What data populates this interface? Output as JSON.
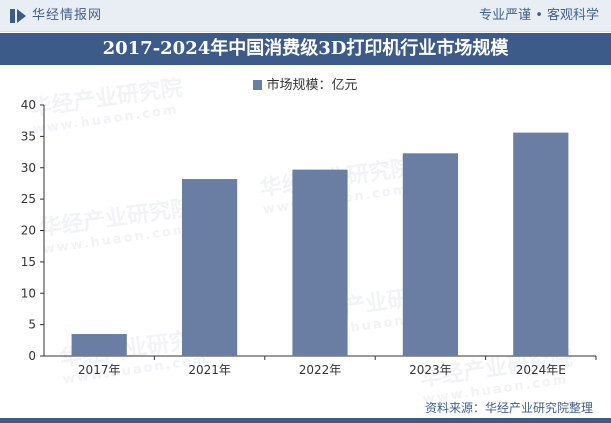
{
  "header": {
    "brand": "华经情报网",
    "slogan": "专业严谨 • 客观科学"
  },
  "watermark": {
    "text": "华经产业研究院",
    "url": "www.huaon.com"
  },
  "source": "资料来源：华经产业研究院整理",
  "colors": {
    "bar": "#6a7ea3",
    "title_bg": "#3d5b89",
    "header_text": "#3f5f8c"
  },
  "chart_data": {
    "type": "bar",
    "title": "2017-2024年中国消费级3D打印机行业市场规模",
    "categories": [
      "2017年",
      "2021年",
      "2022年",
      "2023年",
      "2024年E"
    ],
    "series": [
      {
        "name": "市场规模：亿元",
        "values": [
          3.5,
          28.2,
          29.7,
          32.3,
          35.6
        ]
      }
    ],
    "ylim": [
      0,
      40
    ],
    "yticks": [
      0,
      5,
      10,
      15,
      20,
      25,
      30,
      35,
      40
    ],
    "legend": "top-center",
    "grid": false
  }
}
